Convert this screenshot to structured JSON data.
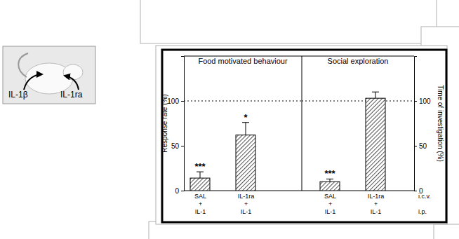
{
  "image_labels": [
    "IL-1β",
    "IL-1ra"
  ],
  "chart_data": [
    {
      "type": "bar",
      "title": "Food motivated behaviour",
      "y_label": "Response rate (%)",
      "categories": [
        "SAL + IL-1",
        "IL-1ra + IL-1"
      ],
      "values": [
        14,
        62
      ],
      "errors": [
        7,
        14
      ],
      "annotations": [
        "***",
        "*"
      ],
      "reference_line": 100,
      "color": "#555555",
      "ylim": [
        0,
        150
      ],
      "yticks": [
        0,
        50,
        100
      ]
    },
    {
      "type": "bar",
      "title": "Social exploration",
      "y_label": "Time of investigation (%)",
      "categories": [
        "SAL + IL-1",
        "IL-1ra + IL-1"
      ],
      "values": [
        10,
        103
      ],
      "errors": [
        3,
        7
      ],
      "annotations": [
        "***",
        ""
      ],
      "reference_line": 100,
      "color": "#555555",
      "row_labels": [
        "i.c.v.",
        "i.p."
      ],
      "ylim": [
        0,
        150
      ],
      "yticks": [
        0,
        50,
        100
      ]
    }
  ]
}
